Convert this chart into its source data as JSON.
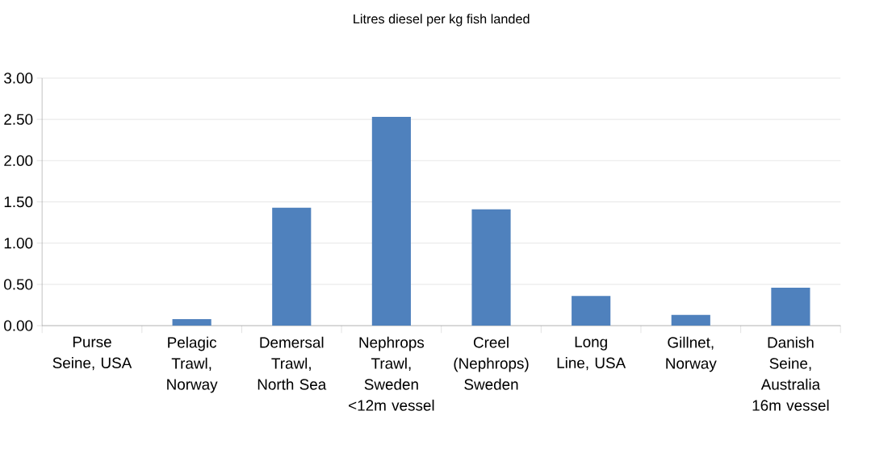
{
  "chart_data": {
    "type": "bar",
    "title": "Litres diesel per kg fish landed",
    "categories": [
      "Purse Seine, USA",
      "Pelagic Trawl, Norway",
      "Demersal Trawl, North Sea",
      "Nephrops Trawl, Sweden <12m vessel",
      "Creel (Nephrops) Sweden",
      "Long Line, USA",
      "Gillnet, Norway",
      "Danish Seine, Australia 16m vessel"
    ],
    "values": [
      0,
      0.08,
      1.43,
      2.53,
      1.41,
      0.36,
      0.13,
      0.46
    ],
    "color": "#4f81bd",
    "ylim": [
      0,
      3
    ],
    "yticks": [
      {
        "value": 0,
        "label": "0.00"
      },
      {
        "value": 0.5,
        "label": "0.50"
      },
      {
        "value": 1,
        "label": "1.00"
      },
      {
        "value": 1.5,
        "label": "1.50"
      },
      {
        "value": 2,
        "label": "2.00"
      },
      {
        "value": 2.5,
        "label": "2.50"
      },
      {
        "value": 3,
        "label": "3.00"
      }
    ],
    "grid": "y"
  }
}
